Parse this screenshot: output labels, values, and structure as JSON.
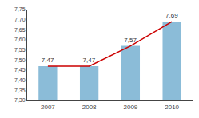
{
  "chart_data": {
    "type": "bar",
    "categories": [
      "2007",
      "2008",
      "2009",
      "2010"
    ],
    "series": [
      {
        "type": "bar",
        "color": "#8bbcd8",
        "values": [
          7.47,
          7.47,
          7.57,
          7.69
        ],
        "value_labels": [
          "7,47",
          "7,47",
          "7,57",
          "7,69"
        ]
      },
      {
        "type": "line",
        "color": "#cc0000",
        "values": [
          7.47,
          7.47,
          7.57,
          7.69
        ]
      }
    ],
    "data_labels": true,
    "ylim": [
      7.3,
      7.75
    ],
    "yticks": [
      {
        "value": 7.3,
        "label": "7,30"
      },
      {
        "value": 7.35,
        "label": "7,35"
      },
      {
        "value": 7.4,
        "label": "7,40"
      },
      {
        "value": 7.45,
        "label": "7,45"
      },
      {
        "value": 7.5,
        "label": "7,50"
      },
      {
        "value": 7.55,
        "label": "7,55"
      },
      {
        "value": 7.6,
        "label": "7,60"
      },
      {
        "value": 7.65,
        "label": "7,65"
      },
      {
        "value": 7.7,
        "label": "7,70"
      },
      {
        "value": 7.75,
        "label": "7,75"
      }
    ],
    "grid": false
  }
}
